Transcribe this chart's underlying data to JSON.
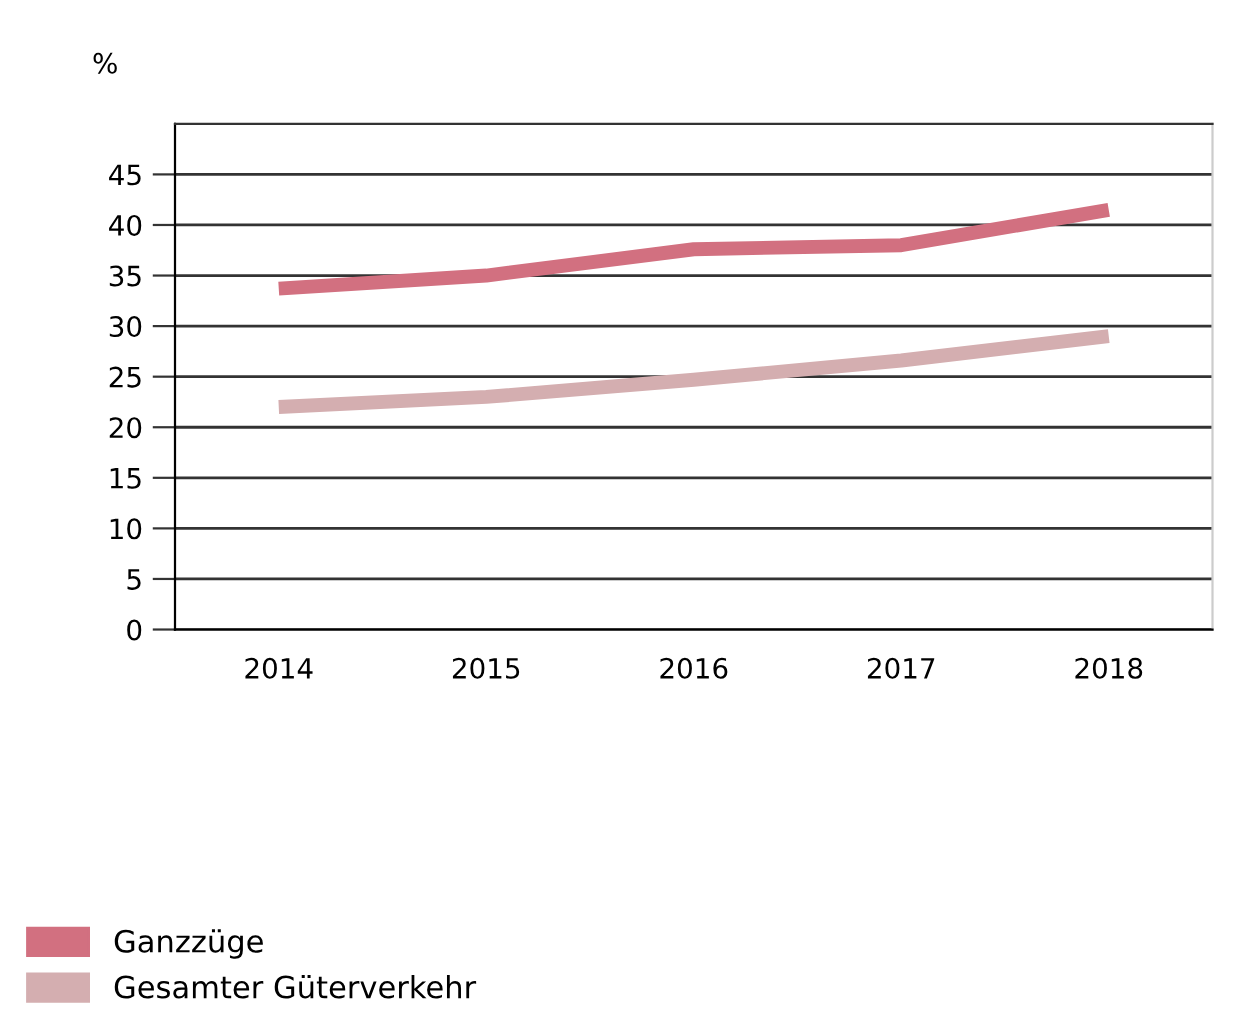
{
  "chart_data": {
    "type": "line",
    "ylabel": "%",
    "categories": [
      "2014",
      "2015",
      "2016",
      "2017",
      "2018"
    ],
    "series": [
      {
        "name": "Ganzzüge",
        "color": "#d27080",
        "values": [
          33.7,
          35,
          37.6,
          38,
          41.5
        ]
      },
      {
        "name": "Gesamter Güterverkehr",
        "color": "#d4aeb0",
        "values": [
          22,
          23,
          24.7,
          26.6,
          29
        ]
      }
    ],
    "ylim": [
      0,
      50
    ],
    "yticks": [
      0,
      5,
      10,
      15,
      20,
      25,
      30,
      35,
      40,
      45
    ],
    "grid": "y",
    "legend": "bottom left",
    "marker": "none",
    "line_style": "solid"
  }
}
